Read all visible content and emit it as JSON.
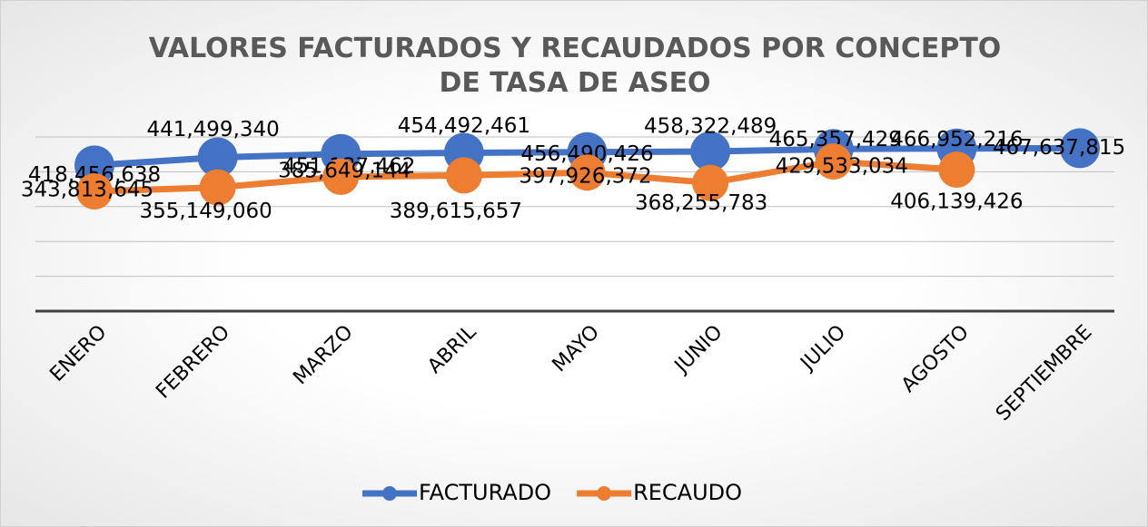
{
  "chart_data": {
    "type": "line",
    "title": "VALORES FACTURADOS Y RECAUDADOS POR CONCEPTO DE TASA DE ASEO",
    "categories": [
      "ENERO",
      "FEBRERO",
      "MARZO",
      "ABRIL",
      "MAYO",
      "JUNIO",
      "JULIO",
      "AGOSTO",
      "SEPTIEMBRE"
    ],
    "series": [
      {
        "name": "FACTURADO",
        "color": "#4472c4",
        "values": [
          418456638,
          441499340,
          451137462,
          454492461,
          456490426,
          458322489,
          465357429,
          466952216,
          467637815
        ],
        "value_labels": [
          "418,456,638",
          "441,499,340",
          "451,137,462",
          "454,492,461",
          "456,490,426",
          "458,322,489",
          "465,357,429",
          "466,952,216",
          "467,637,815"
        ]
      },
      {
        "name": "RECAUDO",
        "color": "#ed7d31",
        "values": [
          343813645,
          355149060,
          385649144,
          389615657,
          397926372,
          368255783,
          429533034,
          406139426,
          null
        ],
        "value_labels": [
          "343,813,645",
          "355,149,060",
          "385,649,144",
          "389,615,657",
          "397,926,372",
          "368,255,783",
          "429,533,034",
          "406,139,426",
          null
        ]
      }
    ],
    "ylim": [
      0,
      500000000
    ],
    "yticks": [
      0,
      100000000,
      200000000,
      300000000,
      400000000,
      500000000
    ],
    "grid": true,
    "legend": "bottom"
  }
}
